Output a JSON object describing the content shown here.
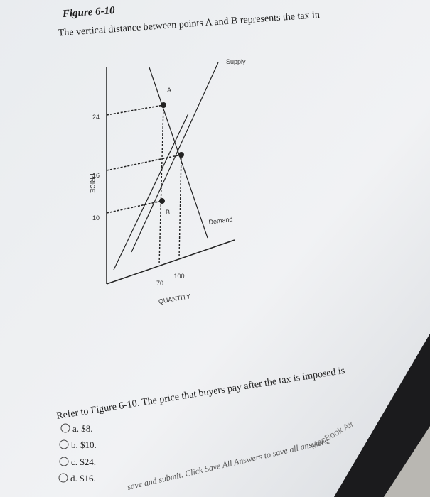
{
  "figure": {
    "title": "Figure 6-10",
    "caption": "The vertical distance between points A and B represents the tax in",
    "y_label": "PRICE",
    "x_label": "QUANTITY",
    "y_ticks": [
      "24",
      "16",
      "10"
    ],
    "x_ticks": [
      "70",
      "100"
    ],
    "supply_label": "Supply",
    "demand_label": "Demand",
    "point_a": "A",
    "point_b": "B"
  },
  "question": {
    "text": "Refer to Figure 6-10. The price that buyers pay after the tax is imposed is",
    "options": [
      "a. $8.",
      "b. $10.",
      "c. $24.",
      "d. $16."
    ]
  },
  "footer": {
    "text": "save and submit. Click Save All Answers to save all answers."
  },
  "device": {
    "label": "MacBook Air"
  }
}
